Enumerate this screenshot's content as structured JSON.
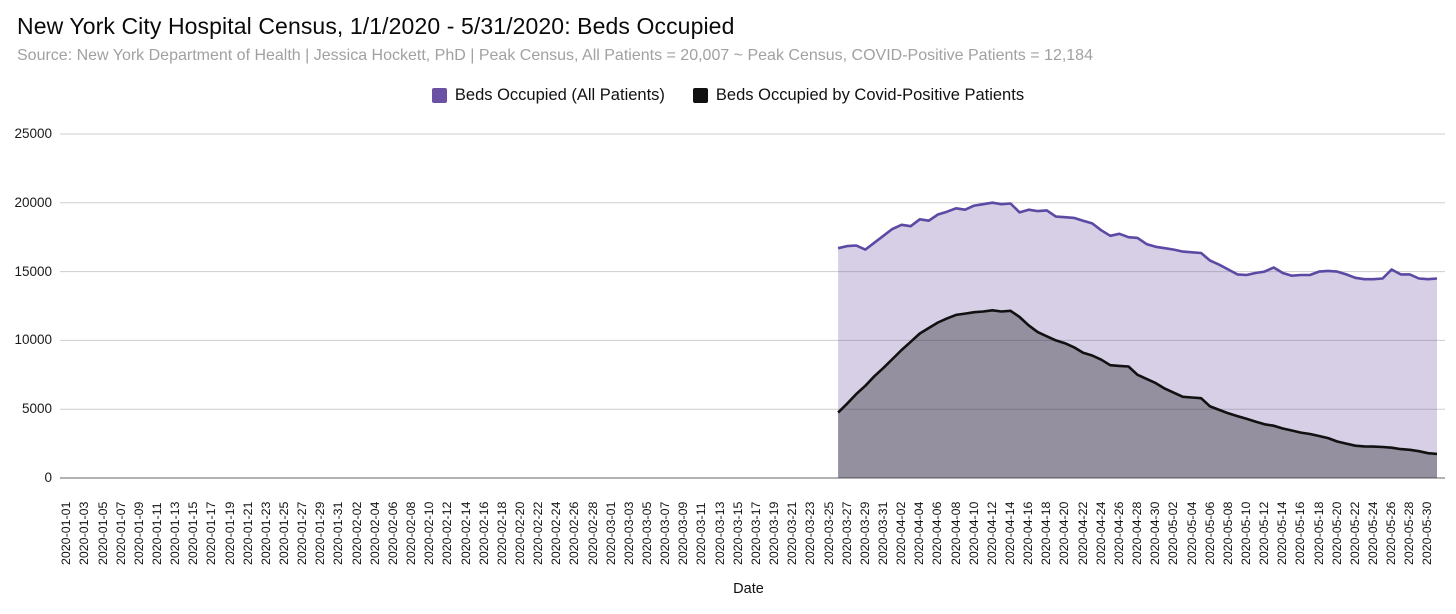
{
  "header": {
    "title": "New York City Hospital Census, 1/1/2020 - 5/31/2020: Beds Occupied",
    "subtitle": "Source: New York Department of Health | Jessica Hockett, PhD | Peak Census, All Patients = 20,007 ~ Peak Census, COVID-Positive Patients = 12,184"
  },
  "legend": {
    "items": [
      {
        "label": "Beds Occupied (All Patients)",
        "color": "#6a51a3"
      },
      {
        "label": "Beds Occupied by Covid-Positive Patients",
        "color": "#111111"
      }
    ]
  },
  "chart_data": {
    "type": "area",
    "title": "New York City Hospital Census, 1/1/2020 - 5/31/2020: Beds Occupied",
    "xlabel": "Date",
    "ylabel": "",
    "ylim": [
      0,
      25000
    ],
    "y_ticks": [
      0,
      5000,
      10000,
      15000,
      20000,
      25000
    ],
    "grid": "horizontal",
    "legend_position": "top-center",
    "x_axis_range": [
      "2020-01-01",
      "2020-05-31"
    ],
    "data_range": [
      "2020-03-26",
      "2020-05-31"
    ],
    "peak_all_patients": 20007,
    "peak_covid_positive": 12184,
    "x_tick_labels": [
      "2020-01-01",
      "2020-01-03",
      "2020-01-05",
      "2020-01-07",
      "2020-01-09",
      "2020-01-11",
      "2020-01-13",
      "2020-01-15",
      "2020-01-17",
      "2020-01-19",
      "2020-01-21",
      "2020-01-23",
      "2020-01-25",
      "2020-01-27",
      "2020-01-29",
      "2020-01-31",
      "2020-02-02",
      "2020-02-04",
      "2020-02-06",
      "2020-02-08",
      "2020-02-10",
      "2020-02-12",
      "2020-02-14",
      "2020-02-16",
      "2020-02-18",
      "2020-02-20",
      "2020-02-22",
      "2020-02-24",
      "2020-02-26",
      "2020-02-28",
      "2020-03-01",
      "2020-03-03",
      "2020-03-05",
      "2020-03-07",
      "2020-03-09",
      "2020-03-11",
      "2020-03-13",
      "2020-03-15",
      "2020-03-17",
      "2020-03-19",
      "2020-03-21",
      "2020-03-23",
      "2020-03-25",
      "2020-03-27",
      "2020-03-29",
      "2020-03-31",
      "2020-04-02",
      "2020-04-04",
      "2020-04-06",
      "2020-04-08",
      "2020-04-10",
      "2020-04-12",
      "2020-04-14",
      "2020-04-16",
      "2020-04-18",
      "2020-04-20",
      "2020-04-22",
      "2020-04-24",
      "2020-04-26",
      "2020-04-28",
      "2020-04-30",
      "2020-05-02",
      "2020-05-04",
      "2020-05-06",
      "2020-05-08",
      "2020-05-10",
      "2020-05-12",
      "2020-05-14",
      "2020-05-16",
      "2020-05-18",
      "2020-05-20",
      "2020-05-22",
      "2020-05-24",
      "2020-05-26",
      "2020-05-28",
      "2020-05-30"
    ],
    "x": [
      "2020-03-26",
      "2020-03-27",
      "2020-03-28",
      "2020-03-29",
      "2020-03-30",
      "2020-03-31",
      "2020-04-01",
      "2020-04-02",
      "2020-04-03",
      "2020-04-04",
      "2020-04-05",
      "2020-04-06",
      "2020-04-07",
      "2020-04-08",
      "2020-04-09",
      "2020-04-10",
      "2020-04-11",
      "2020-04-12",
      "2020-04-13",
      "2020-04-14",
      "2020-04-15",
      "2020-04-16",
      "2020-04-17",
      "2020-04-18",
      "2020-04-19",
      "2020-04-20",
      "2020-04-21",
      "2020-04-22",
      "2020-04-23",
      "2020-04-24",
      "2020-04-25",
      "2020-04-26",
      "2020-04-27",
      "2020-04-28",
      "2020-04-29",
      "2020-04-30",
      "2020-05-01",
      "2020-05-02",
      "2020-05-03",
      "2020-05-04",
      "2020-05-05",
      "2020-05-06",
      "2020-05-07",
      "2020-05-08",
      "2020-05-09",
      "2020-05-10",
      "2020-05-11",
      "2020-05-12",
      "2020-05-13",
      "2020-05-14",
      "2020-05-15",
      "2020-05-16",
      "2020-05-17",
      "2020-05-18",
      "2020-05-19",
      "2020-05-20",
      "2020-05-21",
      "2020-05-22",
      "2020-05-23",
      "2020-05-24",
      "2020-05-25",
      "2020-05-26",
      "2020-05-27",
      "2020-05-28",
      "2020-05-29",
      "2020-05-30",
      "2020-05-31"
    ],
    "series": [
      {
        "name": "Beds Occupied (All Patients)",
        "line_color": "#5c49a4",
        "fill_color": "rgba(106,81,163,0.28)",
        "values": [
          16700,
          16850,
          16900,
          16600,
          17100,
          17600,
          18100,
          18400,
          18300,
          18800,
          18700,
          19150,
          19350,
          19600,
          19500,
          19800,
          19900,
          20007,
          19900,
          19950,
          19300,
          19500,
          19400,
          19450,
          19000,
          18950,
          18900,
          18700,
          18500,
          18000,
          17600,
          17750,
          17500,
          17450,
          17000,
          16800,
          16700,
          16600,
          16450,
          16400,
          16350,
          15800,
          15500,
          15150,
          14800,
          14750,
          14900,
          15000,
          15300,
          14900,
          14700,
          14750,
          14750,
          15000,
          15050,
          15000,
          14800,
          14550,
          14450,
          14450,
          14500,
          15150,
          14800,
          14800,
          14500,
          14450,
          14500
        ]
      },
      {
        "name": "Beds Occupied by Covid-Positive Patients",
        "line_color": "#111111",
        "fill_color": "rgba(0,0,0,0.30)",
        "values": [
          4750,
          5400,
          6100,
          6700,
          7400,
          8000,
          8650,
          9300,
          9900,
          10500,
          10900,
          11300,
          11600,
          11850,
          11950,
          12050,
          12100,
          12184,
          12100,
          12150,
          11700,
          11100,
          10600,
          10300,
          10000,
          9800,
          9500,
          9100,
          8900,
          8600,
          8200,
          8150,
          8100,
          7500,
          7200,
          6900,
          6500,
          6200,
          5900,
          5850,
          5800,
          5200,
          4950,
          4700,
          4500,
          4300,
          4100,
          3900,
          3800,
          3600,
          3450,
          3300,
          3200,
          3050,
          2900,
          2650,
          2500,
          2350,
          2300,
          2280,
          2250,
          2200,
          2100,
          2050,
          1950,
          1800,
          1750
        ]
      }
    ]
  }
}
